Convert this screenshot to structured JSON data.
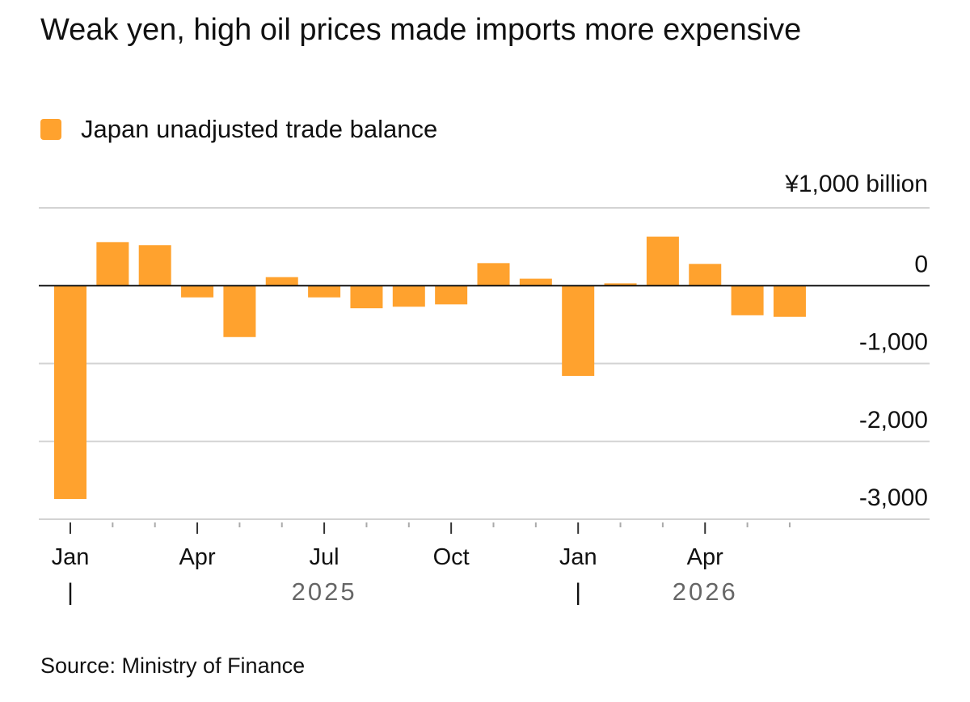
{
  "title": "Weak yen, high oil prices made imports more expensive",
  "source": "Source: Ministry of Finance",
  "colors": {
    "bar": "#FFA22E",
    "grid": "#D3D3D3",
    "zero": "#111111",
    "text": "#111111",
    "year": "#666666"
  },
  "chart_data": {
    "type": "bar",
    "title": "Weak yen, high oil prices made imports more expensive",
    "unit_label": "¥1,000 billion",
    "series": [
      {
        "name": "Japan unadjusted trade balance",
        "values": [
          -2740,
          560,
          520,
          -150,
          -660,
          110,
          -150,
          -290,
          -270,
          -240,
          290,
          90,
          -1160,
          30,
          630,
          280,
          -380,
          -400
        ]
      }
    ],
    "months": [
      "2025-01",
      "2025-02",
      "2025-03",
      "2025-04",
      "2025-05",
      "2025-06",
      "2025-07",
      "2025-08",
      "2025-09",
      "2025-10",
      "2025-11",
      "2025-12",
      "2026-01",
      "2026-02",
      "2026-03",
      "2026-04",
      "2026-05",
      "2026-06"
    ],
    "month_tick_labels": [
      "Jan",
      "",
      "",
      "Apr",
      "",
      "",
      "Jul",
      "",
      "",
      "Oct",
      "",
      "",
      "Jan",
      "",
      "",
      "Apr",
      "",
      ""
    ],
    "year_labels": [
      {
        "label": "2025",
        "at_index": 6
      },
      {
        "label": "2026",
        "at_index": 15
      }
    ],
    "year_separator_indices": [
      0,
      12
    ],
    "year_separator_glyph": "|",
    "y_ticks": [
      1000,
      0,
      -1000,
      -2000,
      -3000
    ],
    "y_tick_labels": [
      "",
      "0",
      "-1,000",
      "-2,000",
      "-3,000"
    ],
    "ylim": [
      -3000,
      1000
    ],
    "grid": true,
    "legend_position": "top-left"
  }
}
